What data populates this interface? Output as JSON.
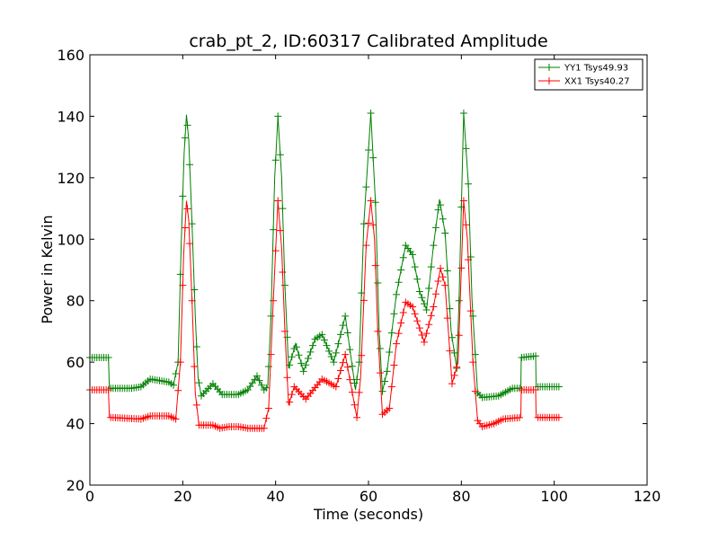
{
  "chart_data": {
    "type": "line",
    "title": "crab_pt_2, ID:60317 Calibrated Amplitude",
    "xlabel": "Time (seconds)",
    "ylabel": "Power in Kelvin",
    "xlim": [
      0,
      120
    ],
    "ylim": [
      20,
      160
    ],
    "xticks": [
      "0",
      "20",
      "40",
      "60",
      "80",
      "100",
      "120"
    ],
    "yticks": [
      "20",
      "40",
      "60",
      "80",
      "100",
      "120",
      "140",
      "160"
    ],
    "grid": false,
    "legend_position": "top-right",
    "marker": "+",
    "series": [
      {
        "name": "YY1 Tsys49.93",
        "color": "#008000",
        "points": [
          [
            0,
            61.5
          ],
          [
            4,
            61.5
          ],
          [
            4.2,
            51.5
          ],
          [
            9,
            51.5
          ],
          [
            11,
            52
          ],
          [
            13,
            54.5
          ],
          [
            15,
            54
          ],
          [
            17,
            53.5
          ],
          [
            18,
            52.5
          ],
          [
            19,
            60
          ],
          [
            19.7,
            100
          ],
          [
            20.3,
            128
          ],
          [
            20.8,
            140.5
          ],
          [
            21.3,
            132
          ],
          [
            22,
            105
          ],
          [
            22.7,
            75
          ],
          [
            23.3,
            55
          ],
          [
            24,
            49
          ],
          [
            26.5,
            53
          ],
          [
            28.5,
            49.5
          ],
          [
            32,
            49.5
          ],
          [
            34,
            51
          ],
          [
            36,
            55.5
          ],
          [
            37.5,
            51
          ],
          [
            38.3,
            52
          ],
          [
            39,
            75
          ],
          [
            39.8,
            120
          ],
          [
            40.5,
            140
          ],
          [
            41.3,
            120
          ],
          [
            42,
            85
          ],
          [
            42.8,
            58
          ],
          [
            44.3,
            66
          ],
          [
            46,
            57
          ],
          [
            48.5,
            67.5
          ],
          [
            50,
            69
          ],
          [
            52.5,
            60
          ],
          [
            55,
            75
          ],
          [
            57.2,
            51
          ],
          [
            58,
            60
          ],
          [
            59,
            105
          ],
          [
            60.5,
            141
          ],
          [
            61.5,
            112
          ],
          [
            62.3,
            70
          ],
          [
            63,
            50.5
          ],
          [
            64,
            57
          ],
          [
            66,
            82
          ],
          [
            68,
            98
          ],
          [
            69.5,
            95
          ],
          [
            71,
            83
          ],
          [
            72.5,
            77
          ],
          [
            74,
            98
          ],
          [
            75.3,
            113
          ],
          [
            76.5,
            102
          ],
          [
            77.8,
            70
          ],
          [
            79,
            58
          ],
          [
            79.5,
            80
          ],
          [
            80.5,
            141
          ],
          [
            81.5,
            118
          ],
          [
            82.3,
            80
          ],
          [
            83.5,
            50
          ],
          [
            84.5,
            48.5
          ],
          [
            88,
            49
          ],
          [
            91,
            51.5
          ],
          [
            92.8,
            51.5
          ],
          [
            92.9,
            61.5
          ],
          [
            96,
            62
          ],
          [
            96.1,
            52
          ],
          [
            101,
            52
          ]
        ]
      },
      {
        "name": "XX1 Tsys40.27",
        "color": "#ff0000",
        "points": [
          [
            0,
            51
          ],
          [
            4,
            51
          ],
          [
            4.2,
            42
          ],
          [
            11,
            41.5
          ],
          [
            13,
            42.5
          ],
          [
            17,
            42.5
          ],
          [
            18.5,
            41.5
          ],
          [
            19.5,
            60
          ],
          [
            20.2,
            95
          ],
          [
            20.8,
            112.5
          ],
          [
            21.3,
            106
          ],
          [
            22,
            80
          ],
          [
            22.7,
            50
          ],
          [
            23.5,
            39.5
          ],
          [
            26.5,
            39.5
          ],
          [
            28,
            38.5
          ],
          [
            30,
            39
          ],
          [
            32,
            39
          ],
          [
            34,
            38.5
          ],
          [
            37.5,
            38.5
          ],
          [
            38.5,
            45
          ],
          [
            39.5,
            80
          ],
          [
            40.5,
            112.5
          ],
          [
            41.3,
            97
          ],
          [
            42,
            70
          ],
          [
            42.8,
            46
          ],
          [
            44,
            52
          ],
          [
            46.5,
            48
          ],
          [
            50,
            54.5
          ],
          [
            53,
            52
          ],
          [
            55,
            62.5
          ],
          [
            57.5,
            42
          ],
          [
            58.3,
            55
          ],
          [
            59.5,
            98
          ],
          [
            60.5,
            112.5
          ],
          [
            61.3,
            100
          ],
          [
            62,
            70
          ],
          [
            63,
            43
          ],
          [
            64.5,
            45
          ],
          [
            66,
            66
          ],
          [
            68,
            79.5
          ],
          [
            69.5,
            78
          ],
          [
            72,
            66.5
          ],
          [
            74,
            78
          ],
          [
            75.5,
            90.5
          ],
          [
            76.5,
            85
          ],
          [
            78,
            53
          ],
          [
            79.3,
            60
          ],
          [
            80.5,
            112.5
          ],
          [
            81.3,
            100
          ],
          [
            82.5,
            60
          ],
          [
            83.5,
            41
          ],
          [
            84.5,
            39
          ],
          [
            87,
            40
          ],
          [
            89,
            41.5
          ],
          [
            92.8,
            42
          ],
          [
            92.9,
            51
          ],
          [
            96,
            51
          ],
          [
            96.1,
            42
          ],
          [
            101,
            42
          ]
        ]
      }
    ]
  }
}
